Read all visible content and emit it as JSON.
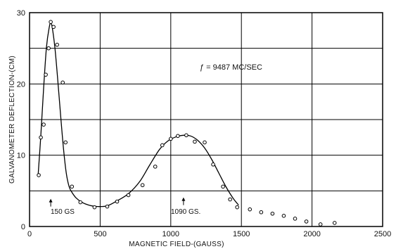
{
  "chart_data": {
    "type": "scatter",
    "title": "",
    "xlabel": "MAGNETIC FIELD-(GAUSS)",
    "ylabel": "GALVANOMETER DEFLECTION-(CM)",
    "xlim": [
      0,
      2500
    ],
    "ylim": [
      0,
      30
    ],
    "x_ticks": [
      "0",
      "500",
      "1000",
      "1500",
      "2000",
      "2500"
    ],
    "y_ticks": [
      "0",
      "10",
      "20",
      "30"
    ],
    "grid": true,
    "annotations": {
      "frequency": "ƒ = 9487 MC/SEC",
      "peak1": "150 GS",
      "peak2": "1090 GS."
    },
    "annotation_positions": {
      "peak1": {
        "x": 150,
        "y": 2.8
      },
      "peak2": {
        "x": 1090,
        "y": 3.0
      }
    },
    "series": [
      {
        "type": "scatter",
        "x": [
          65,
          80,
          100,
          115,
          135,
          150,
          170,
          195,
          235,
          255,
          300,
          360,
          460,
          550,
          620,
          700,
          800,
          890,
          940,
          1000,
          1050,
          1110,
          1170,
          1240,
          1300,
          1370,
          1420,
          1470,
          1560,
          1640,
          1720,
          1800,
          1880,
          1960,
          2060,
          2160
        ],
        "y": [
          7.2,
          12.5,
          14.3,
          21.3,
          25.0,
          28.7,
          28.0,
          25.5,
          20.2,
          11.8,
          5.6,
          3.4,
          2.7,
          2.8,
          3.5,
          4.4,
          5.8,
          8.4,
          11.4,
          12.3,
          12.7,
          12.8,
          11.9,
          11.8,
          8.7,
          5.6,
          3.8,
          2.7,
          2.4,
          2.0,
          1.8,
          1.5,
          1.1,
          0.7,
          0.3,
          0.5
        ]
      },
      {
        "type": "line",
        "x": [
          60,
          80,
          100,
          120,
          140,
          150,
          160,
          180,
          200,
          220,
          240,
          260,
          280,
          300,
          330,
          370,
          420,
          480,
          550,
          620,
          700,
          780,
          850,
          920,
          980,
          1040,
          1090,
          1140,
          1190,
          1240,
          1290,
          1340,
          1390,
          1440,
          1480
        ],
        "y": [
          7.0,
          12.8,
          19.5,
          25.2,
          28.0,
          28.5,
          28.0,
          25.0,
          20.5,
          15.6,
          11.0,
          7.5,
          5.6,
          4.8,
          4.0,
          3.4,
          3.0,
          2.8,
          2.9,
          3.6,
          4.6,
          6.3,
          8.6,
          10.8,
          12.0,
          12.6,
          12.8,
          12.7,
          12.1,
          11.0,
          9.4,
          7.5,
          5.6,
          4.0,
          3.0
        ]
      }
    ]
  }
}
